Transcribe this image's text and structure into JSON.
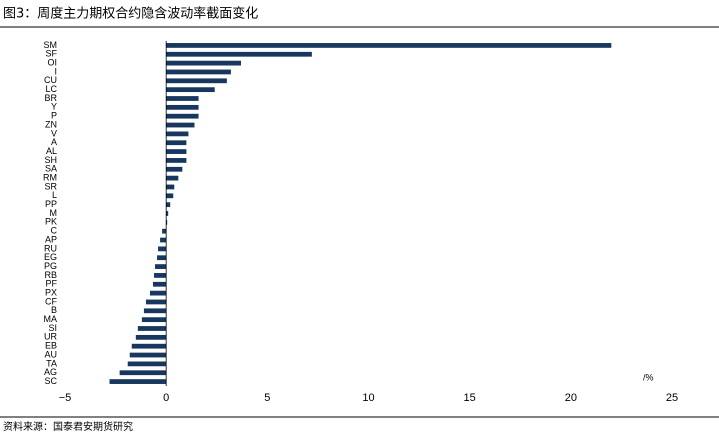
{
  "chart_data": {
    "type": "barh",
    "title": "图3：周度主力期权合约隐含波动率截面变化",
    "source": "资料来源：国泰君安期货研究",
    "unit_label": "/%",
    "categories": [
      "SM",
      "SF",
      "OI",
      "I",
      "CU",
      "LC",
      "BR",
      "Y",
      "P",
      "ZN",
      "V",
      "A",
      "AL",
      "SH",
      "SA",
      "RM",
      "SR",
      "L",
      "PP",
      "M",
      "PK",
      "C",
      "AP",
      "RU",
      "EG",
      "PG",
      "RB",
      "PF",
      "PX",
      "CF",
      "B",
      "MA",
      "SI",
      "UR",
      "EB",
      "AU",
      "TA",
      "AG",
      "SC"
    ],
    "values": [
      22.0,
      7.2,
      3.7,
      3.2,
      3.0,
      2.4,
      1.6,
      1.6,
      1.6,
      1.4,
      1.1,
      1.0,
      1.0,
      1.0,
      0.8,
      0.6,
      0.4,
      0.35,
      0.2,
      0.1,
      0.05,
      -0.2,
      -0.3,
      -0.4,
      -0.45,
      -0.55,
      -0.6,
      -0.65,
      -0.8,
      -1.0,
      -1.1,
      -1.2,
      -1.4,
      -1.5,
      -1.7,
      -1.8,
      -1.9,
      -2.3,
      -2.8
    ],
    "color": "#17375e",
    "xlim": [
      -5,
      25
    ],
    "xticks": [
      {
        "value": -5,
        "label": "−5"
      },
      0,
      5,
      10,
      15,
      20,
      25
    ]
  }
}
